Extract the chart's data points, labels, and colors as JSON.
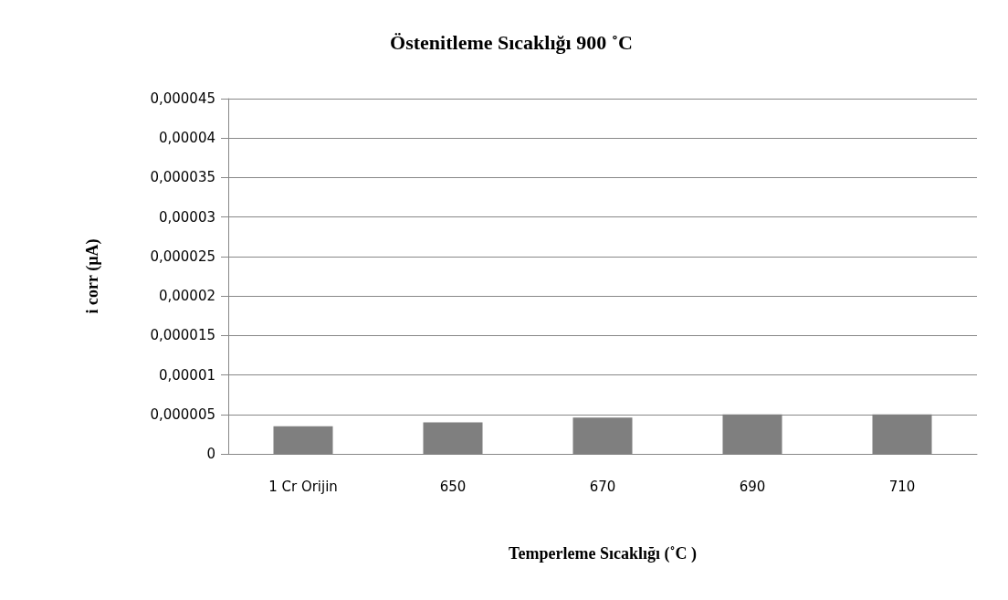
{
  "chart_data": {
    "type": "bar",
    "title": "Östenitleme Sıcaklığı 900 ˚C",
    "xlabel": "Temperleme Sıcaklığı (˚C )",
    "ylabel": "i corr (µA)",
    "categories": [
      "1 Cr Orijin",
      "650",
      "670",
      "690",
      "710"
    ],
    "values": [
      3.5e-06,
      4e-06,
      4.6e-06,
      5e-06,
      5e-06
    ],
    "color": "#7f7f7f",
    "ylim": [
      0,
      4.5e-05
    ],
    "yticks": [
      0,
      {
        "value": 5e-06,
        "label": "0,000005"
      },
      {
        "value": 1e-05,
        "label": "0,00001"
      },
      {
        "value": 1.5e-05,
        "label": "0,000015"
      },
      {
        "value": 2e-05,
        "label": "0,00002"
      },
      {
        "value": 2.5e-05,
        "label": "0,000025"
      },
      {
        "value": 3e-05,
        "label": "0,00003"
      },
      {
        "value": 3.5e-05,
        "label": "0,000035"
      },
      {
        "value": 4e-05,
        "label": "0,00004"
      },
      {
        "value": 4.5e-05,
        "label": "0,000045"
      }
    ],
    "grid": true
  }
}
